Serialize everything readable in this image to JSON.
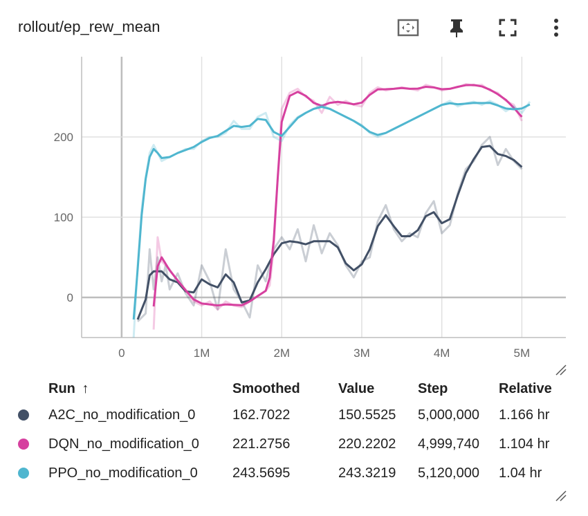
{
  "card": {
    "title": "rollout/ep_rew_mean",
    "toolbar": [
      {
        "name": "fit-domain-icon"
      },
      {
        "name": "pin-icon"
      },
      {
        "name": "fullscreen-icon"
      },
      {
        "name": "more-vert-icon"
      }
    ]
  },
  "chart_data": {
    "type": "line",
    "title": "rollout/ep_rew_mean",
    "xlabel": "",
    "ylabel": "",
    "xlim": [
      -0.5,
      5.55
    ],
    "ylim": [
      -50,
      300
    ],
    "x_ticks": [
      "0",
      "1M",
      "2M",
      "3M",
      "4M",
      "5M"
    ],
    "x_tick_values": [
      0,
      1,
      2,
      3,
      4,
      5
    ],
    "y_ticks": [
      "0",
      "100",
      "200"
    ],
    "y_tick_values": [
      0,
      100,
      200
    ],
    "x_unit": "M steps",
    "grid": true,
    "series": [
      {
        "name": "A2C_no_modification_0",
        "color": "#425066",
        "x": [
          0.2,
          0.3,
          0.35,
          0.4,
          0.45,
          0.5,
          0.55,
          0.6,
          0.7,
          0.8,
          0.9,
          1.0,
          1.1,
          1.2,
          1.3,
          1.4,
          1.5,
          1.6,
          1.7,
          1.8,
          1.9,
          2.0,
          2.1,
          2.2,
          2.3,
          2.4,
          2.5,
          2.6,
          2.7,
          2.8,
          2.9,
          3.0,
          3.1,
          3.2,
          3.3,
          3.4,
          3.5,
          3.6,
          3.7,
          3.8,
          3.9,
          4.0,
          4.1,
          4.2,
          4.3,
          4.4,
          4.5,
          4.6,
          4.7,
          4.8,
          4.9,
          5.0
        ],
        "y": [
          -30,
          -20,
          60,
          10,
          50,
          20,
          40,
          10,
          30,
          5,
          -10,
          40,
          20,
          -15,
          60,
          10,
          -5,
          -25,
          40,
          20,
          60,
          75,
          60,
          85,
          45,
          90,
          55,
          80,
          65,
          40,
          25,
          45,
          50,
          95,
          115,
          85,
          70,
          80,
          75,
          105,
          120,
          80,
          90,
          130,
          160,
          170,
          190,
          200,
          165,
          185,
          170,
          160
        ]
      },
      {
        "name": "DQN_no_modification_0",
        "color": "#d6409f",
        "x": [
          0.4,
          0.45,
          0.5,
          0.6,
          0.7,
          0.8,
          0.9,
          1.0,
          1.1,
          1.2,
          1.3,
          1.4,
          1.5,
          1.6,
          1.7,
          1.8,
          1.85,
          1.9,
          1.95,
          2.0,
          2.1,
          2.2,
          2.3,
          2.4,
          2.5,
          2.6,
          2.7,
          2.8,
          2.9,
          3.0,
          3.1,
          3.2,
          3.3,
          3.4,
          3.5,
          3.6,
          3.7,
          3.8,
          3.9,
          4.0,
          4.1,
          4.2,
          4.3,
          4.4,
          4.5,
          4.6,
          4.7,
          4.8,
          4.9,
          5.0
        ],
        "y": [
          -40,
          75,
          45,
          35,
          20,
          10,
          -5,
          -10,
          -5,
          -15,
          -5,
          -10,
          -12,
          -5,
          2,
          8,
          15,
          60,
          150,
          235,
          255,
          260,
          250,
          245,
          230,
          250,
          240,
          245,
          240,
          238,
          255,
          262,
          258,
          260,
          262,
          260,
          258,
          265,
          262,
          258,
          260,
          262,
          266,
          264,
          265,
          258,
          255,
          245,
          240,
          220
        ]
      },
      {
        "name": "PPO_no_modification_0",
        "color": "#4fb6cf",
        "x": [
          0.15,
          0.2,
          0.25,
          0.3,
          0.35,
          0.4,
          0.45,
          0.5,
          0.6,
          0.7,
          0.8,
          0.9,
          1.0,
          1.1,
          1.2,
          1.3,
          1.4,
          1.5,
          1.6,
          1.7,
          1.8,
          1.9,
          2.0,
          2.1,
          2.2,
          2.3,
          2.4,
          2.5,
          2.6,
          2.7,
          2.8,
          2.9,
          3.0,
          3.1,
          3.2,
          3.3,
          3.4,
          3.5,
          3.6,
          3.7,
          3.8,
          3.9,
          4.0,
          4.1,
          4.2,
          4.3,
          4.4,
          4.5,
          4.6,
          4.7,
          4.8,
          4.9,
          5.0,
          5.1
        ],
        "y": [
          -50,
          40,
          110,
          150,
          180,
          190,
          180,
          170,
          175,
          180,
          185,
          185,
          195,
          200,
          200,
          205,
          220,
          210,
          210,
          225,
          230,
          200,
          195,
          215,
          225,
          230,
          235,
          240,
          235,
          230,
          225,
          220,
          215,
          205,
          200,
          205,
          210,
          215,
          220,
          225,
          230,
          235,
          240,
          245,
          238,
          242,
          244,
          240,
          245,
          240,
          232,
          238,
          230,
          244
        ]
      }
    ]
  },
  "table": {
    "headers": {
      "run": "Run",
      "sort_arrow": "↑",
      "smoothed": "Smoothed",
      "value": "Value",
      "step": "Step",
      "relative": "Relative"
    },
    "rows": [
      {
        "color": "#425066",
        "run": "A2C_no_modification_0",
        "smoothed": "162.7022",
        "value": "150.5525",
        "step": "5,000,000",
        "relative": "1.166 hr"
      },
      {
        "color": "#d6409f",
        "run": "DQN_no_modification_0",
        "smoothed": "221.2756",
        "value": "220.2202",
        "step": "4,999,740",
        "relative": "1.104 hr"
      },
      {
        "color": "#4fb6cf",
        "run": "PPO_no_modification_0",
        "smoothed": "243.5695",
        "value": "243.3219",
        "step": "5,120,000",
        "relative": "1.04 hr"
      }
    ]
  }
}
